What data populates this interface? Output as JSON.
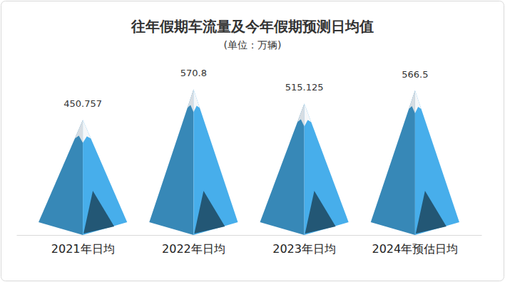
{
  "chart_data": {
    "type": "bar",
    "title": "往年假期车流量及今年假期预测日均值",
    "subtitle": "(单位：万辆)",
    "categories": [
      "2021年日均",
      "2022年日均",
      "2023年日均",
      "2024年预估日均"
    ],
    "values": [
      450.757,
      570.8,
      515.125,
      566.5
    ],
    "color": "#3a8fc1",
    "ylim": [
      0,
      600
    ],
    "data_labels": true,
    "tick_labels": "x"
  }
}
